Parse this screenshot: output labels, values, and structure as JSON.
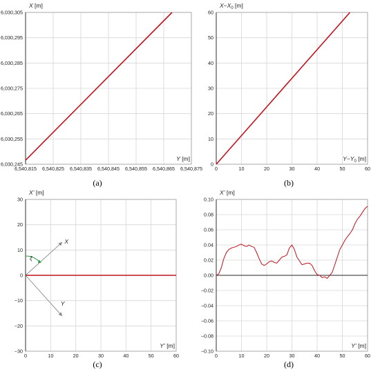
{
  "chart_data": [
    {
      "id": "a",
      "type": "line",
      "caption": "(a)",
      "xlabel": {
        "sym": "Y",
        "unit": " [m]"
      },
      "ylabel": {
        "sym": "X",
        "unit": " [m]"
      },
      "xlim": [
        6540815,
        6540875
      ],
      "ylim": [
        6030245,
        6030305
      ],
      "x_ticks": [
        "6,540,815",
        "6,540,825",
        "6,540,835",
        "6,540,845",
        "6,540,855",
        "6,540,865",
        "6,540,875"
      ],
      "y_ticks": [
        "6,030,245",
        "6,030,255",
        "6,030,265",
        "6,030,275",
        "6,030,285",
        "6,030,295",
        "6,030,305"
      ],
      "grid": true,
      "color": "#c0111b",
      "series": [
        {
          "x": [
            6540815,
            6540868
          ],
          "y": [
            6030246.6,
            6030305
          ]
        }
      ]
    },
    {
      "id": "b",
      "type": "line",
      "caption": "(b)",
      "xlabel": {
        "sym": "Y−Y",
        "sub": "0",
        "unit": " [m]"
      },
      "ylabel": {
        "sym": "X−X",
        "sub": "0",
        "unit": " [m]"
      },
      "xlim": [
        0,
        60
      ],
      "ylim": [
        0,
        60
      ],
      "x_ticks": [
        "0",
        "10",
        "20",
        "30",
        "40",
        "50",
        "60"
      ],
      "y_ticks": [
        "0",
        "10",
        "20",
        "30",
        "40",
        "50",
        "60"
      ],
      "grid": true,
      "color": "#c0111b",
      "series": [
        {
          "x": [
            0,
            53
          ],
          "y": [
            0,
            60
          ]
        }
      ]
    },
    {
      "id": "c",
      "type": "line",
      "caption": "(c)",
      "xlabel": {
        "sym": "Y’",
        "unit": " [m]"
      },
      "ylabel": {
        "sym": "X’",
        "unit": " [m]"
      },
      "xlim": [
        0,
        60
      ],
      "ylim": [
        -30,
        30
      ],
      "x_ticks": [
        "0",
        "10",
        "20",
        "30",
        "40",
        "50",
        "60"
      ],
      "y_ticks": [
        "−30",
        "−20",
        "−10",
        "0",
        "10",
        "20",
        "30"
      ],
      "grid": true,
      "color": "#c0111b",
      "series": [
        {
          "x": [
            0,
            60
          ],
          "y": [
            0,
            0
          ]
        }
      ],
      "annotations": {
        "arrow_x_label": "X",
        "arrow_y_label": "Y",
        "angle_label": "ξ",
        "arrow_color": "#888888",
        "angle_color": "#2e9b46"
      }
    },
    {
      "id": "d",
      "type": "line",
      "caption": "(d)",
      "xlabel": {
        "sym": "Y’",
        "unit": " [m]"
      },
      "ylabel": {
        "sym": "X’",
        "unit": " [m]"
      },
      "xlim": [
        0,
        60
      ],
      "ylim": [
        -0.1,
        0.1
      ],
      "x_ticks": [
        "0",
        "10",
        "20",
        "30",
        "40",
        "50",
        "60"
      ],
      "y_ticks": [
        "−0.10",
        "−0.08",
        "−0.06",
        "−0.04",
        "−0.02",
        "0.00",
        "0.02",
        "0.04",
        "0.06",
        "0.08",
        "0.10"
      ],
      "grid": true,
      "color": "#c0111b",
      "series": [
        {
          "x": [
            0,
            1,
            2,
            3,
            4,
            5,
            6,
            7,
            8,
            9,
            10,
            11,
            12,
            13,
            14,
            15,
            16,
            17,
            18,
            19,
            20,
            21,
            22,
            23,
            24,
            25,
            26,
            27,
            28,
            29,
            30,
            31,
            32,
            33,
            34,
            35,
            36,
            37,
            38,
            39,
            40,
            41,
            42,
            43,
            44,
            45,
            46,
            47,
            48,
            49,
            50,
            51,
            52,
            53,
            54,
            55,
            56,
            57,
            58,
            59,
            60
          ],
          "y": [
            0.0,
            0.002,
            0.01,
            0.022,
            0.03,
            0.034,
            0.036,
            0.037,
            0.038,
            0.04,
            0.041,
            0.039,
            0.038,
            0.04,
            0.038,
            0.037,
            0.03,
            0.022,
            0.015,
            0.013,
            0.015,
            0.018,
            0.019,
            0.017,
            0.016,
            0.02,
            0.024,
            0.025,
            0.027,
            0.036,
            0.04,
            0.034,
            0.024,
            0.019,
            0.014,
            0.015,
            0.016,
            0.016,
            0.013,
            0.006,
            0.001,
            0.0,
            -0.003,
            -0.002,
            -0.004,
            0.0,
            0.004,
            0.014,
            0.024,
            0.034,
            0.04,
            0.046,
            0.051,
            0.055,
            0.06,
            0.068,
            0.074,
            0.078,
            0.083,
            0.088,
            0.091
          ]
        }
      ]
    }
  ]
}
